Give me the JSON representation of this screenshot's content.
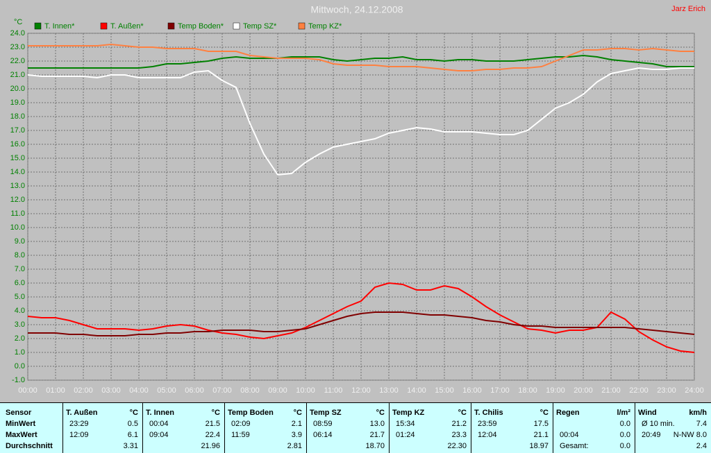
{
  "chart_data": {
    "type": "line",
    "title": "Mittwoch, 24.12.2008",
    "author": "Jarz Erich",
    "y_label": "°C",
    "grid": true,
    "x": [
      0,
      0.5,
      1,
      1.5,
      2,
      2.5,
      3,
      3.5,
      4,
      4.5,
      5,
      5.5,
      6,
      6.5,
      7,
      7.5,
      8,
      8.5,
      9,
      9.5,
      10,
      10.5,
      11,
      11.5,
      12,
      12.5,
      13,
      13.5,
      14,
      14.5,
      15,
      15.5,
      16,
      16.5,
      17,
      17.5,
      18,
      18.5,
      19,
      19.5,
      20,
      20.5,
      21,
      21.5,
      22,
      22.5,
      23,
      23.5,
      24
    ],
    "xlim": [
      0,
      24
    ],
    "xticks": [
      {
        "value": 0,
        "label": "00:00"
      },
      {
        "value": 1,
        "label": "01:00"
      },
      {
        "value": 2,
        "label": "02:00"
      },
      {
        "value": 3,
        "label": "03:00"
      },
      {
        "value": 4,
        "label": "04:00"
      },
      {
        "value": 5,
        "label": "05:00"
      },
      {
        "value": 6,
        "label": "06:00"
      },
      {
        "value": 7,
        "label": "07:00"
      },
      {
        "value": 8,
        "label": "08:00"
      },
      {
        "value": 9,
        "label": "09:00"
      },
      {
        "value": 10,
        "label": "10:00"
      },
      {
        "value": 11,
        "label": "11:00"
      },
      {
        "value": 12,
        "label": "12:00"
      },
      {
        "value": 13,
        "label": "13:00"
      },
      {
        "value": 14,
        "label": "14:00"
      },
      {
        "value": 15,
        "label": "15:00"
      },
      {
        "value": 16,
        "label": "16:00"
      },
      {
        "value": 17,
        "label": "17:00"
      },
      {
        "value": 18,
        "label": "18:00"
      },
      {
        "value": 19,
        "label": "19:00"
      },
      {
        "value": 20,
        "label": "20:00"
      },
      {
        "value": 21,
        "label": "21:00"
      },
      {
        "value": 22,
        "label": "22:00"
      },
      {
        "value": 23,
        "label": "23:00"
      },
      {
        "value": 24,
        "label": "24:00"
      }
    ],
    "ylim": [
      -1,
      24
    ],
    "yticks": [
      {
        "value": 24,
        "label": "24.0"
      },
      {
        "value": 23,
        "label": "23.0"
      },
      {
        "value": 22,
        "label": "22.0"
      },
      {
        "value": 21,
        "label": "21.0"
      },
      {
        "value": 20,
        "label": "20.0"
      },
      {
        "value": 19,
        "label": "19.0"
      },
      {
        "value": 18,
        "label": "18.0"
      },
      {
        "value": 17,
        "label": "17.0"
      },
      {
        "value": 16,
        "label": "16.0"
      },
      {
        "value": 15,
        "label": "15.0"
      },
      {
        "value": 14,
        "label": "14.0"
      },
      {
        "value": 13,
        "label": "13.0"
      },
      {
        "value": 12,
        "label": "12.0"
      },
      {
        "value": 11,
        "label": "11.0"
      },
      {
        "value": 10,
        "label": "10.0"
      },
      {
        "value": 9,
        "label": "9.0"
      },
      {
        "value": 8,
        "label": "8.0"
      },
      {
        "value": 7,
        "label": "7.0"
      },
      {
        "value": 6,
        "label": "6.0"
      },
      {
        "value": 5,
        "label": "5.0"
      },
      {
        "value": 4,
        "label": "4.0"
      },
      {
        "value": 3,
        "label": "3.0"
      },
      {
        "value": 2,
        "label": "2.0"
      },
      {
        "value": 1,
        "label": "1.0"
      },
      {
        "value": 0,
        "label": "0.0"
      },
      {
        "value": -1,
        "label": "-1.0"
      }
    ],
    "series": [
      {
        "name": "T. Innen*",
        "color": "#008000",
        "values": [
          21.5,
          21.5,
          21.5,
          21.5,
          21.5,
          21.5,
          21.5,
          21.5,
          21.5,
          21.6,
          21.8,
          21.8,
          21.9,
          22.0,
          22.2,
          22.3,
          22.2,
          22.2,
          22.2,
          22.3,
          22.3,
          22.3,
          22.1,
          22.0,
          22.1,
          22.2,
          22.2,
          22.3,
          22.1,
          22.1,
          22.0,
          22.1,
          22.1,
          22.0,
          22.0,
          22.0,
          22.1,
          22.2,
          22.3,
          22.3,
          22.4,
          22.3,
          22.1,
          22.0,
          21.9,
          21.8,
          21.6,
          21.6,
          21.6
        ]
      },
      {
        "name": "T. Außen*",
        "color": "#ff0000",
        "values": [
          3.6,
          3.5,
          3.5,
          3.3,
          3.0,
          2.7,
          2.7,
          2.7,
          2.6,
          2.7,
          2.9,
          3.0,
          2.9,
          2.6,
          2.4,
          2.3,
          2.1,
          2.0,
          2.2,
          2.4,
          2.8,
          3.3,
          3.8,
          4.3,
          4.7,
          5.7,
          6.0,
          5.9,
          5.5,
          5.5,
          5.8,
          5.6,
          5.0,
          4.3,
          3.7,
          3.2,
          2.7,
          2.6,
          2.4,
          2.6,
          2.6,
          2.8,
          3.9,
          3.4,
          2.5,
          1.9,
          1.4,
          1.1,
          1.0
        ]
      },
      {
        "name": "Temp Boden*",
        "color": "#800000",
        "values": [
          2.4,
          2.4,
          2.4,
          2.3,
          2.3,
          2.2,
          2.2,
          2.2,
          2.3,
          2.3,
          2.4,
          2.4,
          2.5,
          2.5,
          2.6,
          2.6,
          2.6,
          2.5,
          2.5,
          2.6,
          2.7,
          3.0,
          3.3,
          3.6,
          3.8,
          3.9,
          3.9,
          3.9,
          3.8,
          3.7,
          3.7,
          3.6,
          3.5,
          3.3,
          3.2,
          3.0,
          2.9,
          2.9,
          2.8,
          2.8,
          2.8,
          2.8,
          2.8,
          2.8,
          2.7,
          2.6,
          2.5,
          2.4,
          2.3
        ]
      },
      {
        "name": "Temp SZ*",
        "color": "#ffffff",
        "values": [
          21.0,
          20.9,
          20.9,
          20.9,
          20.9,
          20.8,
          21.0,
          21.0,
          20.8,
          20.8,
          20.8,
          20.8,
          21.2,
          21.3,
          20.6,
          20.1,
          17.5,
          15.3,
          13.8,
          13.9,
          14.7,
          15.3,
          15.8,
          16.0,
          16.2,
          16.4,
          16.8,
          17.0,
          17.2,
          17.1,
          16.9,
          16.9,
          16.9,
          16.8,
          16.7,
          16.7,
          17.0,
          17.8,
          18.6,
          19.0,
          19.6,
          20.5,
          21.1,
          21.3,
          21.5,
          21.4,
          21.4,
          21.5,
          21.5
        ]
      },
      {
        "name": "Temp KZ*",
        "color": "#ff8040",
        "values": [
          23.1,
          23.1,
          23.1,
          23.1,
          23.1,
          23.1,
          23.2,
          23.1,
          23.0,
          23.0,
          22.9,
          22.9,
          22.9,
          22.7,
          22.7,
          22.7,
          22.4,
          22.3,
          22.2,
          22.2,
          22.2,
          22.1,
          21.8,
          21.7,
          21.7,
          21.7,
          21.6,
          21.6,
          21.6,
          21.5,
          21.4,
          21.3,
          21.3,
          21.4,
          21.4,
          21.5,
          21.5,
          21.6,
          22.0,
          22.4,
          22.8,
          22.8,
          22.9,
          22.9,
          22.8,
          22.9,
          22.8,
          22.7,
          22.7
        ]
      }
    ]
  },
  "table": {
    "corner": "Sensor",
    "row_labels": [
      "MinWert",
      "MaxWert",
      "Durchschnitt"
    ],
    "columns": [
      {
        "name": "T. Außen",
        "unit": "°C",
        "rows": [
          [
            "23:29",
            "0.5"
          ],
          [
            "12:09",
            "6.1"
          ],
          [
            null,
            "3.31"
          ]
        ]
      },
      {
        "name": "T. Innen",
        "unit": "°C",
        "rows": [
          [
            "00:04",
            "21.5"
          ],
          [
            "09:04",
            "22.4"
          ],
          [
            null,
            "21.96"
          ]
        ]
      },
      {
        "name": "Temp Boden",
        "unit": "°C",
        "rows": [
          [
            "02:09",
            "2.1"
          ],
          [
            "11:59",
            "3.9"
          ],
          [
            null,
            "2.81"
          ]
        ]
      },
      {
        "name": "Temp SZ",
        "unit": "°C",
        "rows": [
          [
            "08:59",
            "13.0"
          ],
          [
            "06:14",
            "21.7"
          ],
          [
            null,
            "18.70"
          ]
        ]
      },
      {
        "name": "Temp KZ",
        "unit": "°C",
        "rows": [
          [
            "15:34",
            "21.2"
          ],
          [
            "01:24",
            "23.3"
          ],
          [
            null,
            "22.30"
          ]
        ]
      },
      {
        "name": "T. Chilis",
        "unit": "°C",
        "rows": [
          [
            "23:59",
            "17.5"
          ],
          [
            "12:04",
            "21.1"
          ],
          [
            null,
            "18.97"
          ]
        ]
      },
      {
        "name": "Regen",
        "unit": "l/m²",
        "rows": [
          [
            null,
            "0.0"
          ],
          [
            "00:04",
            "0.0"
          ],
          [
            "Gesamt:",
            "0.0"
          ]
        ]
      },
      {
        "name": "Wind",
        "unit": "km/h",
        "rows": [
          [
            "Ø 10 min.",
            "7.4"
          ],
          [
            "20:49",
            "N-NW 8.0"
          ],
          [
            null,
            "2.4"
          ]
        ]
      }
    ]
  }
}
